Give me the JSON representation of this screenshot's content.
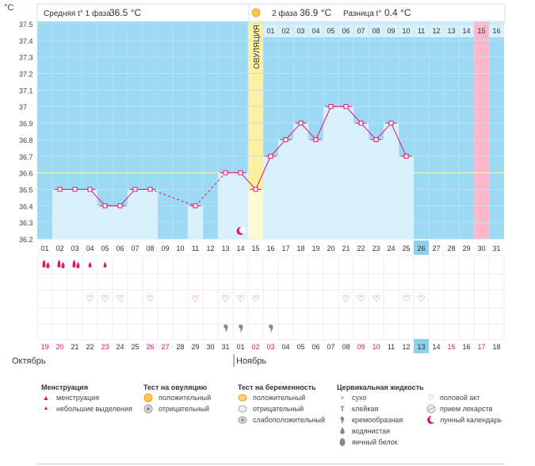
{
  "header": {
    "unit": "°C",
    "phase1_label": "Средняя t° 1 фаза",
    "phase1_value": "36.5 °C",
    "phase2_label": "2 фаза",
    "phase2_value": "36.9 °C",
    "diff_label": "Разница t°",
    "diff_value": "0.4 °C"
  },
  "chart_data": {
    "type": "line",
    "title": "",
    "ylabel": "°C",
    "ylim": [
      36.2,
      37.5
    ],
    "yticks": [
      "37.5",
      "37.4",
      "37.3",
      "37.2",
      "37.1",
      "37",
      "36.9",
      "36.8",
      "36.7",
      "36.6",
      "36.5",
      "36.4",
      "36.3",
      "36.2"
    ],
    "coverline": 36.6,
    "cycle_days": [
      "01",
      "02",
      "03",
      "04",
      "05",
      "06",
      "07",
      "08",
      "09",
      "10",
      "11",
      "12",
      "13",
      "14",
      "15",
      "16",
      "17",
      "18",
      "19",
      "20",
      "21",
      "22",
      "23",
      "24",
      "25",
      "26",
      "27",
      "28",
      "29",
      "30",
      "31"
    ],
    "temperatures": [
      null,
      36.5,
      36.5,
      36.5,
      36.4,
      36.4,
      36.5,
      36.5,
      null,
      null,
      36.4,
      null,
      36.6,
      36.6,
      36.5,
      36.7,
      36.8,
      36.9,
      36.8,
      37.0,
      37.0,
      36.9,
      36.8,
      36.9,
      36.7,
      null,
      null,
      null,
      null,
      null,
      null
    ],
    "ovulation_day": 15,
    "ovulation_label": "ОВУЛЯЦИЯ",
    "phase2_day_labels": [
      "01",
      "02",
      "03",
      "04",
      "05",
      "06",
      "07",
      "08",
      "09",
      "10",
      "11",
      "12",
      "13",
      "14",
      "15",
      "16"
    ],
    "highlight_phase2_day": "15",
    "today_day": 26,
    "moon_day": 14,
    "calendar_dates": [
      "19",
      "20",
      "21",
      "22",
      "23",
      "24",
      "25",
      "26",
      "27",
      "28",
      "29",
      "30",
      "31",
      "01",
      "02",
      "03",
      "04",
      "05",
      "06",
      "07",
      "08",
      "09",
      "10",
      "11",
      "12",
      "13",
      "14",
      "15",
      "16",
      "17",
      "18"
    ],
    "calendar_red_indices": [
      0,
      1,
      4,
      7,
      8,
      14,
      15,
      21,
      22,
      27,
      29
    ],
    "months": {
      "first": "Октябрь",
      "second": "Ноябрь"
    },
    "menstruation": {
      "heavy": [
        1,
        2,
        3
      ],
      "light": [
        4,
        5
      ]
    },
    "intercourse_days": [
      4,
      5,
      6,
      8,
      11,
      13,
      14,
      15,
      21,
      22,
      23,
      25,
      26
    ],
    "fluid_creamy_days": [
      13,
      14,
      16
    ]
  },
  "legend": {
    "menstruation": {
      "title": "Менструация",
      "items": [
        "менструация",
        "небольшие выделения"
      ]
    },
    "ovulation_test": {
      "title": "Тест на овуляцию",
      "items": [
        "положительный",
        "отрицательный"
      ]
    },
    "pregnancy_test": {
      "title": "Тест на беременность",
      "items": [
        "положительный",
        "отрицательный",
        "слабоположительный"
      ]
    },
    "cervical_fluid": {
      "title": "Цервикальная жидкость",
      "items": [
        "сухо",
        "клейкая",
        "кремообразная",
        "водянистая",
        "яичный белок"
      ]
    },
    "other": {
      "items": [
        "половой акт",
        "прием лекарств",
        "лунный календарь"
      ]
    }
  },
  "colors": {
    "blue_bg": "#9ED9F3",
    "bar": "#D7F0FB",
    "ovulation": "#FFF0A0",
    "pink": "#FFB6C8",
    "line": "#E0146E",
    "today": "#8ECFEA"
  }
}
